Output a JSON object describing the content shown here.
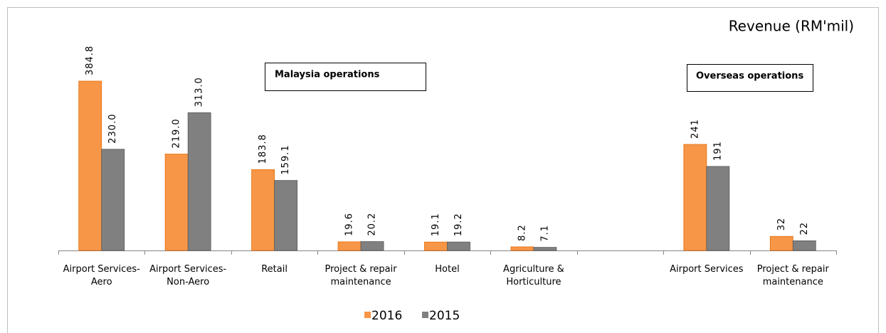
{
  "chart_data": {
    "type": "bar",
    "title": "Revenue (RM'mil)",
    "annotations": [
      "Malaysia operations",
      "Overseas operations"
    ],
    "categories": [
      "Airport Services-\nAero",
      "Airport Services-\nNon-Aero",
      "Retail",
      "Project & repair\nmaintenance",
      "Hotel",
      "Agriculture &\nHorticulture",
      null,
      "Airport Services",
      "Project & repair\nmaintenance"
    ],
    "series": [
      {
        "name": "2016",
        "color": "#f79646",
        "values": [
          384.8,
          219.0,
          183.8,
          19.6,
          19.1,
          8.2,
          null,
          241,
          32
        ],
        "value_labels": [
          "384.8",
          "219.0",
          "183.8",
          "19.6",
          "19.1",
          "8.2",
          null,
          "241",
          "32"
        ]
      },
      {
        "name": "2015",
        "color": "#808080",
        "values": [
          230.0,
          313.0,
          159.1,
          20.2,
          19.2,
          7.1,
          null,
          191,
          22
        ],
        "value_labels": [
          "230.0",
          "313.0",
          "159.1",
          "20.2",
          "19.2",
          "7.1",
          null,
          "191",
          "22"
        ]
      }
    ],
    "legend": "bottom"
  }
}
